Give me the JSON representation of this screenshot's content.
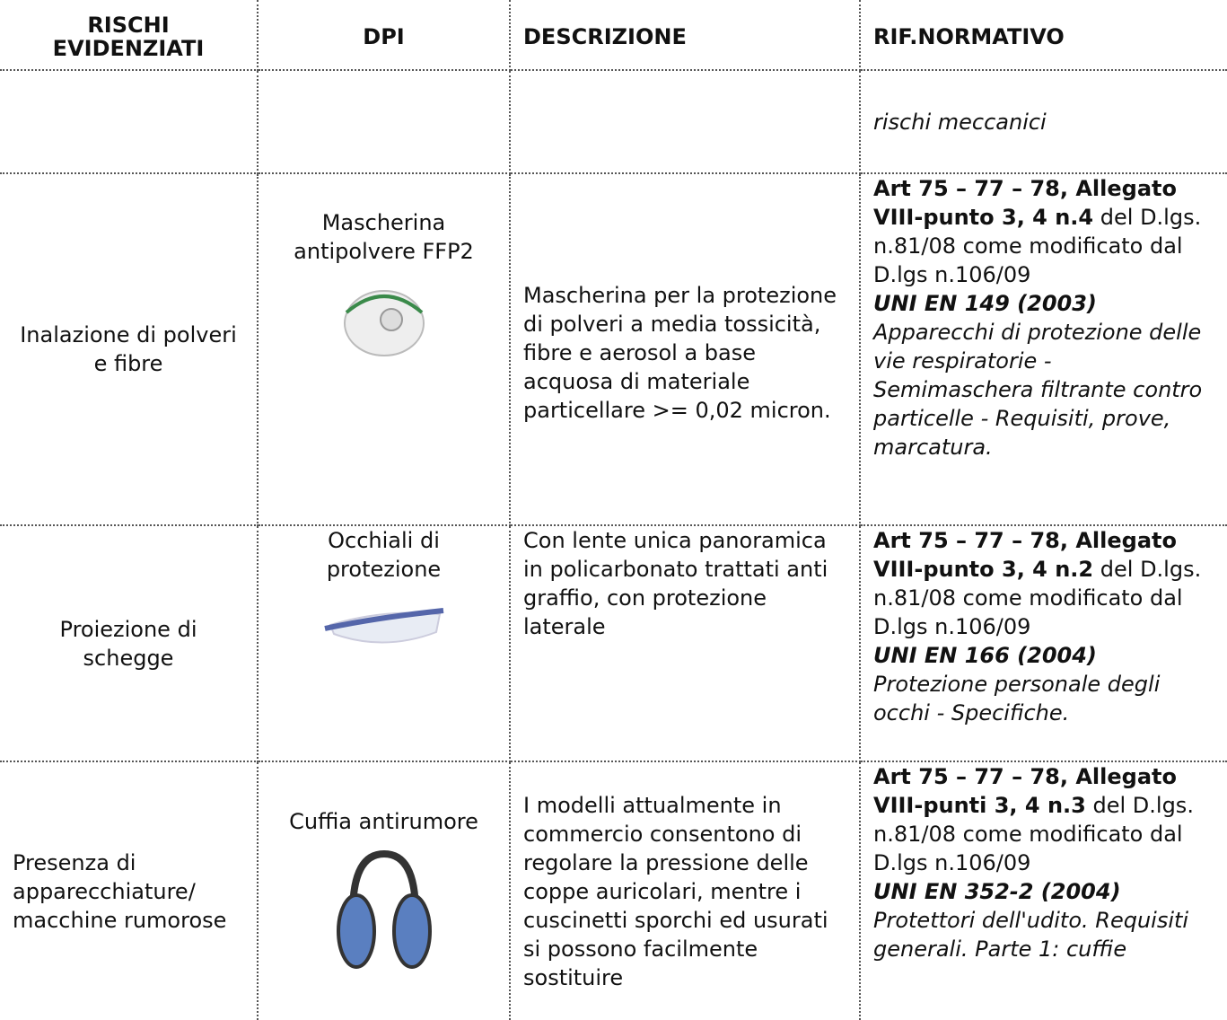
{
  "table": {
    "headers": [
      "RISCHI EVIDENZIATI",
      "DPI",
      "DESCRIZIONE",
      "RIF.NORMATIVO"
    ],
    "rows": [
      {
        "rif_note": "rischi meccanici"
      },
      {
        "risk": "Inalazione di polveri e fibre",
        "dpi": "Mascherina antipolvere FFP2",
        "description": "Mascherina per la protezione di polveri a media tossicità, fibre e aerosol a base acquosa di materiale particellare >= 0,02 micron.",
        "rif_bold": "Art 75 – 77 – 78, Allegato VIII-punto 3, 4 n.4",
        "rif_text": "del D.lgs. n.81/08 come modificato dal D.lgs n.106/09",
        "standard": "UNI EN 149  (2003)",
        "standard_title": "Apparecchi di protezione delle vie respiratorie - Semimaschera filtrante contro particelle - Requisiti, prove, marcatura."
      },
      {
        "risk": "Proiezione di schegge",
        "dpi": "Occhiali di protezione",
        "description": "Con lente unica panoramica in policarbonato trattati anti graffio, con protezione laterale",
        "rif_bold": "Art 75 – 77 – 78, Allegato VIII-punto 3, 4 n.2",
        "rif_text": "del D.lgs. n.81/08 come modificato dal D.lgs n.106/09",
        "standard": "UNI EN 166 (2004)",
        "standard_title": "Protezione personale degli occhi - Specifiche."
      },
      {
        "risk": "Presenza di apparecchiature/ macchine rumorose",
        "dpi": "Cuffia antirumore",
        "description": "I modelli attualmente in commercio consentono di regolare la pressione delle coppe auricolari, mentre i cuscinetti sporchi ed usurati si possono facilmente sostituire",
        "rif_bold": "Art 75 – 77 – 78, Allegato VIII-punti 3, 4 n.3",
        "rif_text": "del D.lgs. n.81/08 come modificato dal D.lgs n.106/09",
        "standard": "UNI EN 352-2 (2004)",
        "standard_title": "Protettori dell'udito. Requisiti generali. Parte 1: cuffie"
      }
    ]
  }
}
